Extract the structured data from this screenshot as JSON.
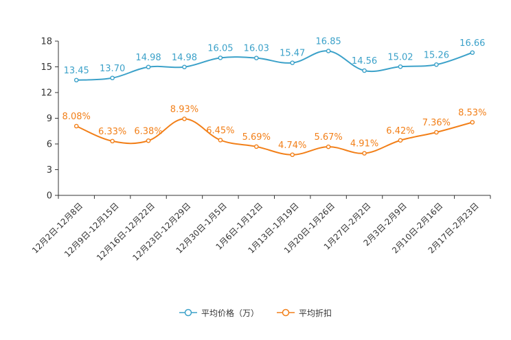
{
  "chart_data": {
    "type": "line",
    "title": "",
    "xlabel": "",
    "ylabel": "",
    "ylim": [
      0,
      18
    ],
    "yticks": [
      "0",
      "3",
      "6",
      "9",
      "12",
      "15",
      "18"
    ],
    "categories": [
      "12月2日-12月8日",
      "12月9日-12月15日",
      "12月16日-12月22日",
      "12月23日-12月29日",
      "12月30日-1月5日",
      "1月6日-1月12日",
      "1月13日-1月19日",
      "1月20日-1月26日",
      "1月27日-2月2日",
      "2月3日-2月9日",
      "2月10日-2月16日",
      "2月17日-2月23日"
    ],
    "series": [
      {
        "name": "平均价格（万）",
        "color": "#3ba1c9",
        "values": [
          13.45,
          13.7,
          14.98,
          14.98,
          16.05,
          16.03,
          15.47,
          16.85,
          14.56,
          15.02,
          15.26,
          16.66
        ],
        "labels": [
          "13.45",
          "13.70",
          "14.98",
          "14.98",
          "16.05",
          "16.03",
          "15.47",
          "16.85",
          "14.56",
          "15.02",
          "15.26",
          "16.66"
        ]
      },
      {
        "name": "平均折扣",
        "color": "#f27f18",
        "values": [
          8.08,
          6.33,
          6.38,
          8.93,
          6.45,
          5.69,
          4.74,
          5.67,
          4.91,
          6.42,
          7.36,
          8.53
        ],
        "labels": [
          "8.08%",
          "6.33%",
          "6.38%",
          "8.93%",
          "6.45%",
          "5.69%",
          "4.74%",
          "5.67%",
          "4.91%",
          "6.42%",
          "7.36%",
          "8.53%"
        ]
      }
    ],
    "legend_position": "bottom-center",
    "grid": false
  }
}
